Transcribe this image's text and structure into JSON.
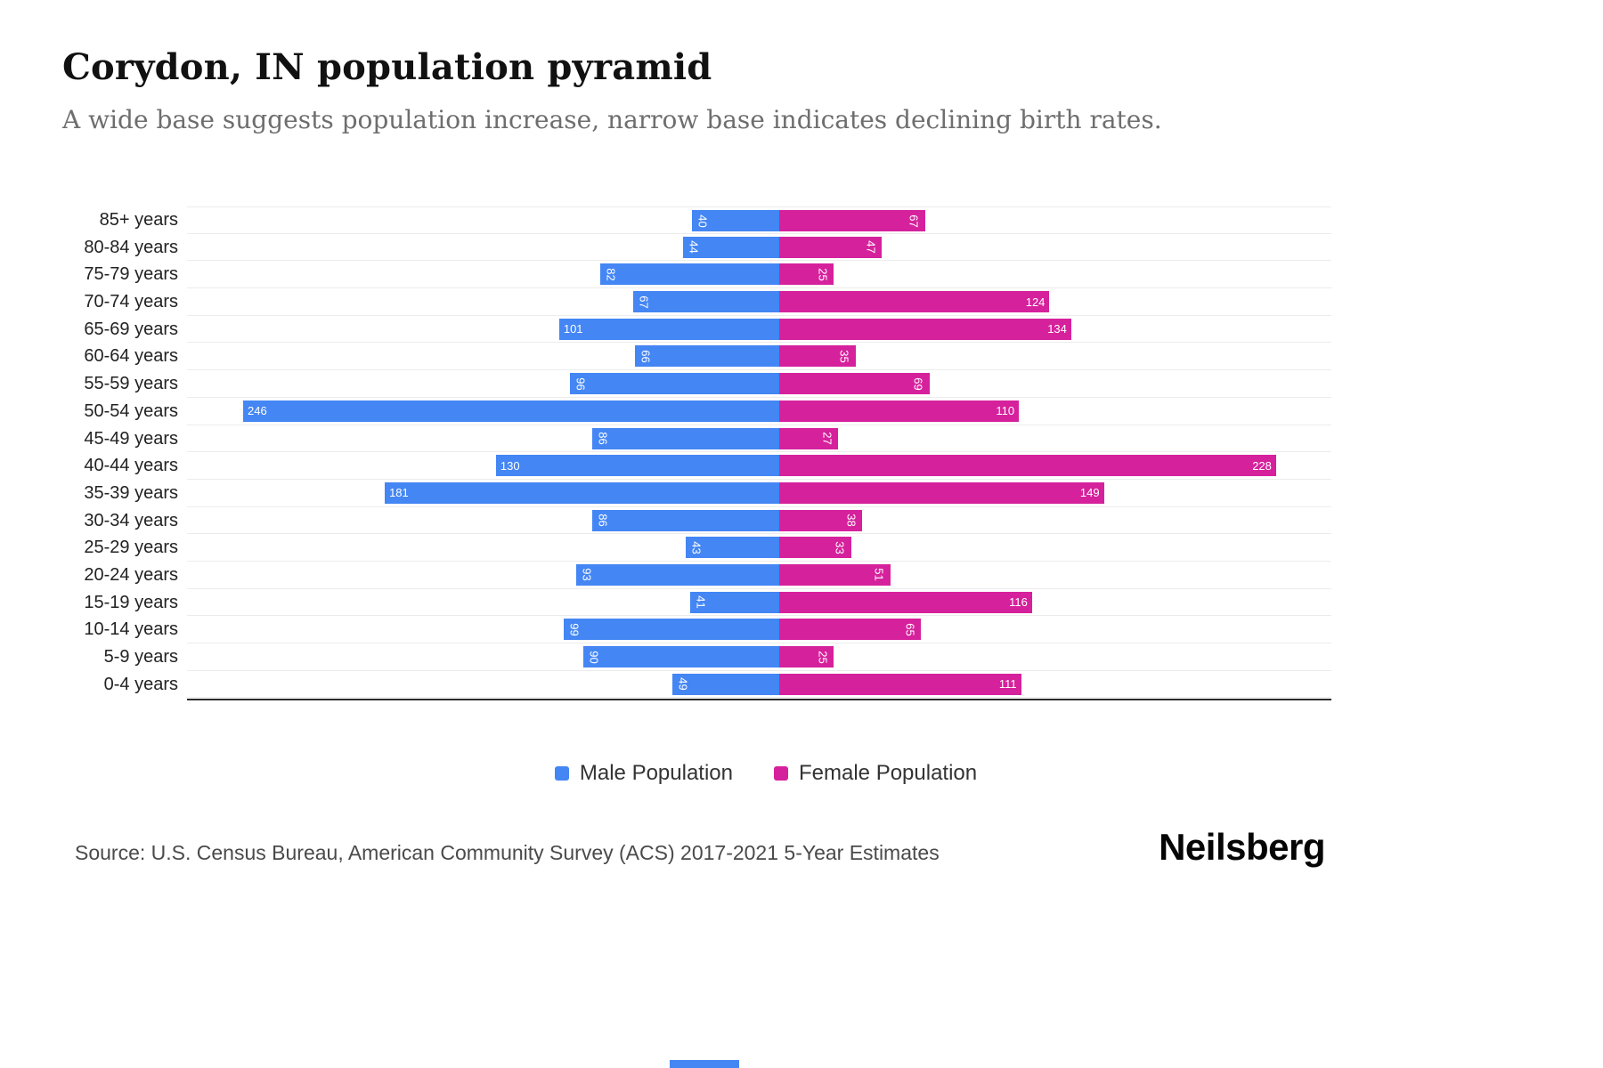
{
  "header": {
    "title": "Corydon, IN population pyramid",
    "subtitle": "A wide base suggests population increase, narrow base indicates declining birth rates."
  },
  "chart_data": {
    "type": "bar",
    "variant": "population-pyramid",
    "orientation": "horizontal",
    "title": "Corydon, IN population pyramid",
    "categories": [
      "85+ years",
      "80-84 years",
      "75-79 years",
      "70-74 years",
      "65-69 years",
      "60-64 years",
      "55-59 years",
      "50-54 years",
      "45-49 years",
      "40-44 years",
      "35-39 years",
      "30-34 years",
      "25-29 years",
      "20-24 years",
      "15-19 years",
      "10-14 years",
      "5-9 years",
      "0-4 years"
    ],
    "series": [
      {
        "name": "Male Population",
        "color": "#4486F4",
        "direction": "left",
        "values": [
          40,
          44,
          82,
          67,
          101,
          66,
          96,
          246,
          86,
          130,
          181,
          86,
          43,
          93,
          41,
          99,
          90,
          49
        ]
      },
      {
        "name": "Female Population",
        "color": "#D6219C",
        "direction": "right",
        "values": [
          67,
          47,
          25,
          124,
          134,
          35,
          69,
          110,
          27,
          228,
          149,
          38,
          33,
          51,
          116,
          65,
          25,
          111
        ]
      }
    ],
    "value_axis_max": 250,
    "grid": "subtle horizontal row lines",
    "legend_position": "bottom",
    "data_labels": "white, inside far end of bar, rotated 90deg when value has 2 digits"
  },
  "footer": {
    "source": "Source: U.S. Census Bureau, American Community Survey (ACS) 2017-2021 5-Year Estimates",
    "brand": "Neilsberg"
  }
}
